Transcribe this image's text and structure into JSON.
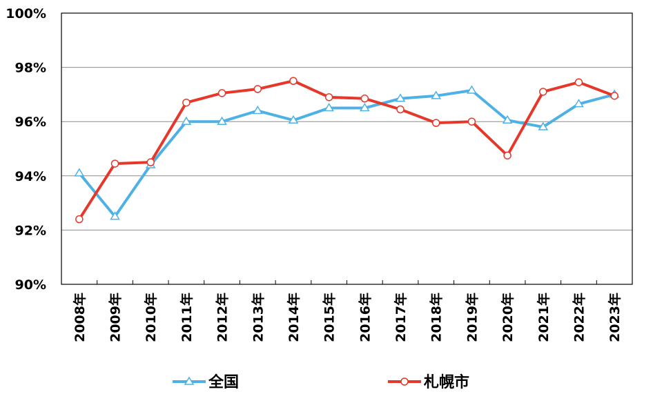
{
  "chart_data": {
    "type": "line",
    "categories": [
      "2008年",
      "2009年",
      "2010年",
      "2011年",
      "2012年",
      "2013年",
      "2014年",
      "2015年",
      "2016年",
      "2017年",
      "2018年",
      "2019年",
      "2020年",
      "2021年",
      "2022年",
      "2023年"
    ],
    "y_ticks": [
      "90%",
      "92%",
      "94%",
      "96%",
      "98%",
      "100%"
    ],
    "ylim": [
      90,
      100
    ],
    "grid": true,
    "legend_position": "bottom",
    "series": [
      {
        "name": "全国",
        "color": "#4DB1E6",
        "marker": "triangle",
        "values": [
          94.1,
          92.5,
          94.4,
          96.0,
          96.0,
          96.4,
          96.05,
          96.5,
          96.5,
          96.85,
          96.95,
          97.15,
          96.05,
          95.8,
          96.65,
          97.0
        ]
      },
      {
        "name": "札幌市",
        "color": "#E5372A",
        "marker": "circle",
        "values": [
          92.4,
          94.45,
          94.5,
          96.7,
          97.05,
          97.2,
          97.5,
          96.9,
          96.85,
          96.45,
          95.95,
          96.0,
          94.75,
          97.1,
          97.45,
          96.95
        ]
      }
    ]
  }
}
